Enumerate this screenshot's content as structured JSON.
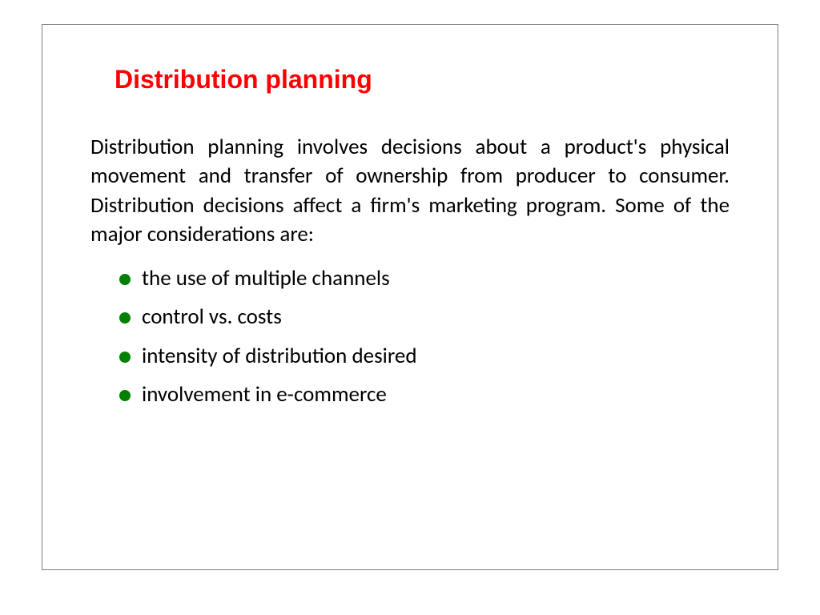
{
  "slide": {
    "title": "Distribution planning",
    "body": "Distribution planning involves decisions about a product's physical movement and transfer of ownership from producer to consumer. Distribution decisions affect a firm's marketing program. Some of the major considerations are:",
    "bullets": [
      "the use of multiple channels",
      "control vs. costs",
      "intensity of distribution desired",
      "involvement in e-commerce"
    ],
    "styling": {
      "title_color": "#ff0000",
      "title_fontsize": 32,
      "title_fontweight": "bold",
      "title_fontfamily": "Arial",
      "body_color": "#000000",
      "body_fontsize": 27,
      "body_align": "justify",
      "bullet_color": "#008000",
      "bullet_size": 14,
      "frame_border_color": "#7f7f7f",
      "background_color": "#ffffff",
      "slide_width": 1024,
      "slide_height": 768
    }
  }
}
